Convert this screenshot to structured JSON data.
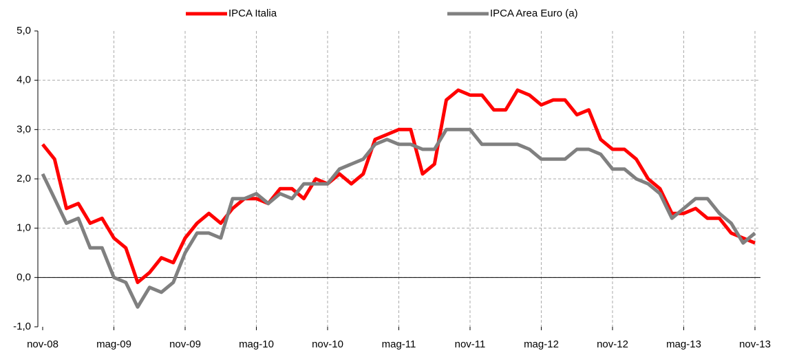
{
  "chart_data": {
    "type": "line",
    "categories": [
      "nov-08",
      null,
      null,
      null,
      null,
      null,
      "mag-09",
      null,
      null,
      null,
      null,
      null,
      "nov-09",
      null,
      null,
      null,
      null,
      null,
      "mag-10",
      null,
      null,
      null,
      null,
      null,
      "nov-10",
      null,
      null,
      null,
      null,
      null,
      "mag-11",
      null,
      null,
      null,
      null,
      null,
      "nov-11",
      null,
      null,
      null,
      null,
      null,
      "mag-12",
      null,
      null,
      null,
      null,
      null,
      "nov-12",
      null,
      null,
      null,
      null,
      null,
      "mag-13",
      null,
      null,
      null,
      null,
      null,
      "nov-13"
    ],
    "series": [
      {
        "name": "IPCA Italia",
        "color": "#ff0000",
        "values": [
          2.7,
          2.4,
          1.4,
          1.5,
          1.1,
          1.2,
          0.8,
          0.6,
          -0.1,
          0.1,
          0.4,
          0.3,
          0.8,
          1.1,
          1.3,
          1.1,
          1.4,
          1.6,
          1.6,
          1.5,
          1.8,
          1.8,
          1.6,
          2.0,
          1.9,
          2.1,
          1.9,
          2.1,
          2.8,
          2.9,
          3.0,
          3.0,
          2.1,
          2.3,
          3.6,
          3.8,
          3.7,
          3.7,
          3.4,
          3.4,
          3.8,
          3.7,
          3.5,
          3.6,
          3.6,
          3.3,
          3.4,
          2.8,
          2.6,
          2.6,
          2.4,
          2.0,
          1.8,
          1.3,
          1.3,
          1.4,
          1.2,
          1.2,
          0.9,
          0.8,
          0.7
        ]
      },
      {
        "name": "IPCA Area Euro (a)",
        "color": "#808080",
        "values": [
          2.1,
          1.6,
          1.1,
          1.2,
          0.6,
          0.6,
          0.0,
          -0.1,
          -0.6,
          -0.2,
          -0.3,
          -0.1,
          0.5,
          0.9,
          0.9,
          0.8,
          1.6,
          1.6,
          1.7,
          1.5,
          1.7,
          1.6,
          1.9,
          1.9,
          1.9,
          2.2,
          2.3,
          2.4,
          2.7,
          2.8,
          2.7,
          2.7,
          2.6,
          2.6,
          3.0,
          3.0,
          3.0,
          2.7,
          2.7,
          2.7,
          2.7,
          2.6,
          2.4,
          2.4,
          2.4,
          2.6,
          2.6,
          2.5,
          2.2,
          2.2,
          2.0,
          1.9,
          1.7,
          1.2,
          1.4,
          1.6,
          1.6,
          1.3,
          1.1,
          0.7,
          0.9
        ]
      }
    ],
    "ylim": [
      -1,
      5
    ],
    "yticks": [
      {
        "value": -1,
        "label": "-1,0"
      },
      {
        "value": 0,
        "label": "0,0"
      },
      {
        "value": 1,
        "label": "1,0"
      },
      {
        "value": 2,
        "label": "2,0"
      },
      {
        "value": 3,
        "label": "3,0"
      },
      {
        "value": 4,
        "label": "4,0"
      },
      {
        "value": 5,
        "label": "5,0"
      }
    ],
    "grid": true
  }
}
